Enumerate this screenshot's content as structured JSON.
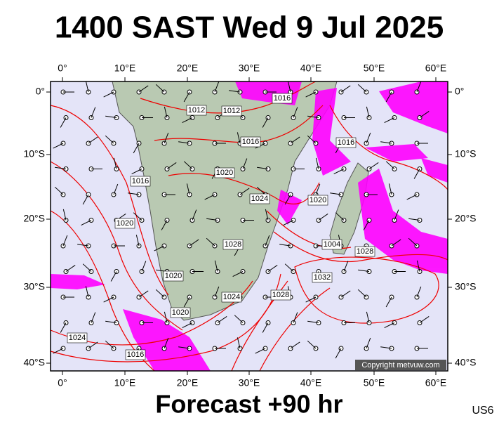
{
  "header": {
    "title": "1400 SAST Wed 9 Jul 2025"
  },
  "footer": {
    "forecast": "Forecast +90 hr",
    "code": "US6"
  },
  "copyright": "Copyright metvuw.com",
  "axes": {
    "longitudes": [
      "0°",
      "10°E",
      "20°E",
      "30°E",
      "40°E",
      "50°E",
      "60°E"
    ],
    "latitudes": [
      "0°",
      "10°S",
      "20°S",
      "30°S",
      "40°S"
    ]
  },
  "isobars": [
    "1012",
    "1012",
    "1016",
    "1016",
    "1016",
    "1016",
    "1020",
    "1024",
    "1020",
    "1020",
    "1028",
    "1004",
    "1028",
    "1020",
    "1032",
    "1028",
    "1024",
    "1020",
    "1024",
    "1016"
  ]
}
